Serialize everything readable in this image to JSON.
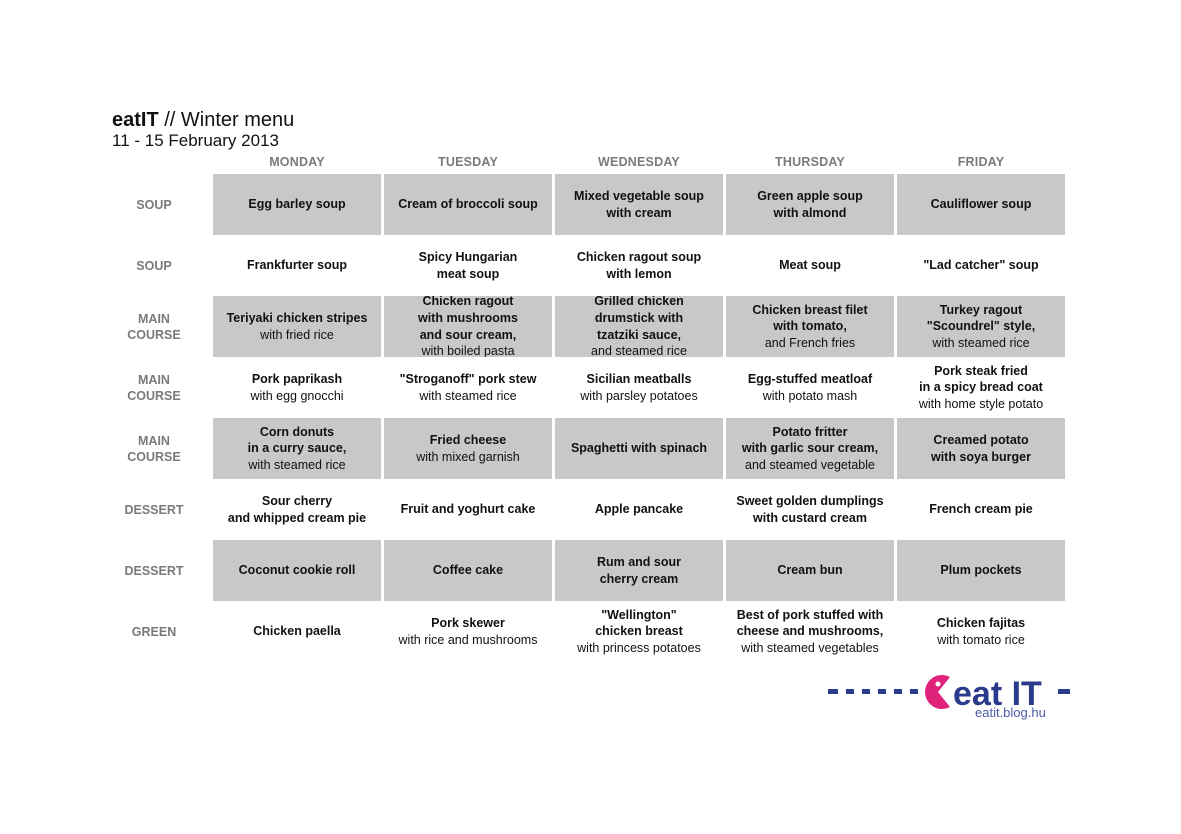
{
  "header": {
    "brand": "eatIT",
    "title_rest": " // Winter menu",
    "dates": "11 - 15 February 2013"
  },
  "days": [
    "MONDAY",
    "TUESDAY",
    "WEDNESDAY",
    "THURSDAY",
    "FRIDAY"
  ],
  "rows": [
    {
      "label": "SOUP",
      "shaded": true,
      "cells": [
        {
          "dish": "Egg barley soup"
        },
        {
          "dish": "Cream of broccoli soup"
        },
        {
          "dish": "Mixed vegetable soup\nwith cream"
        },
        {
          "dish": "Green apple soup\nwith almond"
        },
        {
          "dish": "Cauliflower soup"
        }
      ]
    },
    {
      "label": "SOUP",
      "shaded": false,
      "cells": [
        {
          "dish": "Frankfurter soup"
        },
        {
          "dish": "Spicy Hungarian\nmeat soup"
        },
        {
          "dish": "Chicken ragout soup\nwith lemon"
        },
        {
          "dish": "Meat soup"
        },
        {
          "dish": "\"Lad catcher\" soup"
        }
      ]
    },
    {
      "label": "MAIN\nCOURSE",
      "shaded": true,
      "cells": [
        {
          "dish": "Teriyaki chicken stripes",
          "side": "with fried rice"
        },
        {
          "dish": "Chicken ragout\nwith mushrooms\nand sour cream,",
          "side": "with boiled pasta"
        },
        {
          "dish": "Grilled chicken\ndrumstick with\ntzatziki sauce,",
          "side": "and steamed rice"
        },
        {
          "dish": "Chicken breast filet\nwith tomato,",
          "side": "and French fries"
        },
        {
          "dish": "Turkey ragout\n\"Scoundrel\" style,",
          "side": "with steamed rice"
        }
      ]
    },
    {
      "label": "MAIN\nCOURSE",
      "shaded": false,
      "cells": [
        {
          "dish": "Pork paprikash",
          "side": "with egg gnocchi"
        },
        {
          "dish": "\"Stroganoff\" pork stew",
          "side": "with steamed rice"
        },
        {
          "dish": "Sicilian meatballs",
          "side": "with parsley potatoes"
        },
        {
          "dish": "Egg-stuffed meatloaf",
          "side": "with potato mash"
        },
        {
          "dish": "Pork steak fried\nin a spicy bread coat",
          "side": "with home style potato"
        }
      ]
    },
    {
      "label": "MAIN\nCOURSE",
      "shaded": true,
      "cells": [
        {
          "dish": "Corn donuts\nin a curry sauce,",
          "side": "with steamed rice"
        },
        {
          "dish": "Fried cheese",
          "side": "with mixed garnish"
        },
        {
          "dish": "Spaghetti with spinach"
        },
        {
          "dish": "Potato fritter\nwith garlic sour cream,",
          "side": "and steamed vegetable"
        },
        {
          "dish": "Creamed potato\nwith soya burger"
        }
      ]
    },
    {
      "label": "DESSERT",
      "shaded": false,
      "cells": [
        {
          "dish": "Sour cherry\nand whipped cream pie"
        },
        {
          "dish": "Fruit and yoghurt cake"
        },
        {
          "dish": "Apple pancake"
        },
        {
          "dish": "Sweet golden dumplings\nwith custard cream"
        },
        {
          "dish": "French cream pie"
        }
      ]
    },
    {
      "label": "DESSERT",
      "shaded": true,
      "cells": [
        {
          "dish": "Coconut cookie roll"
        },
        {
          "dish": "Coffee cake"
        },
        {
          "dish": "Rum and sour\ncherry cream"
        },
        {
          "dish": "Cream bun"
        },
        {
          "dish": "Plum pockets"
        }
      ]
    },
    {
      "label": "GREEN",
      "shaded": false,
      "cells": [
        {
          "dish": "Chicken paella"
        },
        {
          "dish": "Pork skewer",
          "side": "with rice and mushrooms"
        },
        {
          "dish": "\"Wellington\"\nchicken breast",
          "side": "with princess potatoes"
        },
        {
          "dish": "Best of pork stuffed with\ncheese and mushrooms,",
          "side": "with steamed vegetables"
        },
        {
          "dish": "Chicken fajitas",
          "side": "with tomato rice"
        }
      ]
    }
  ],
  "logo": {
    "wordmark": "eat IT",
    "url": "eatit.blog.hu",
    "colors": {
      "navy": "#2a3a8c",
      "magenta": "#e0237a"
    }
  }
}
